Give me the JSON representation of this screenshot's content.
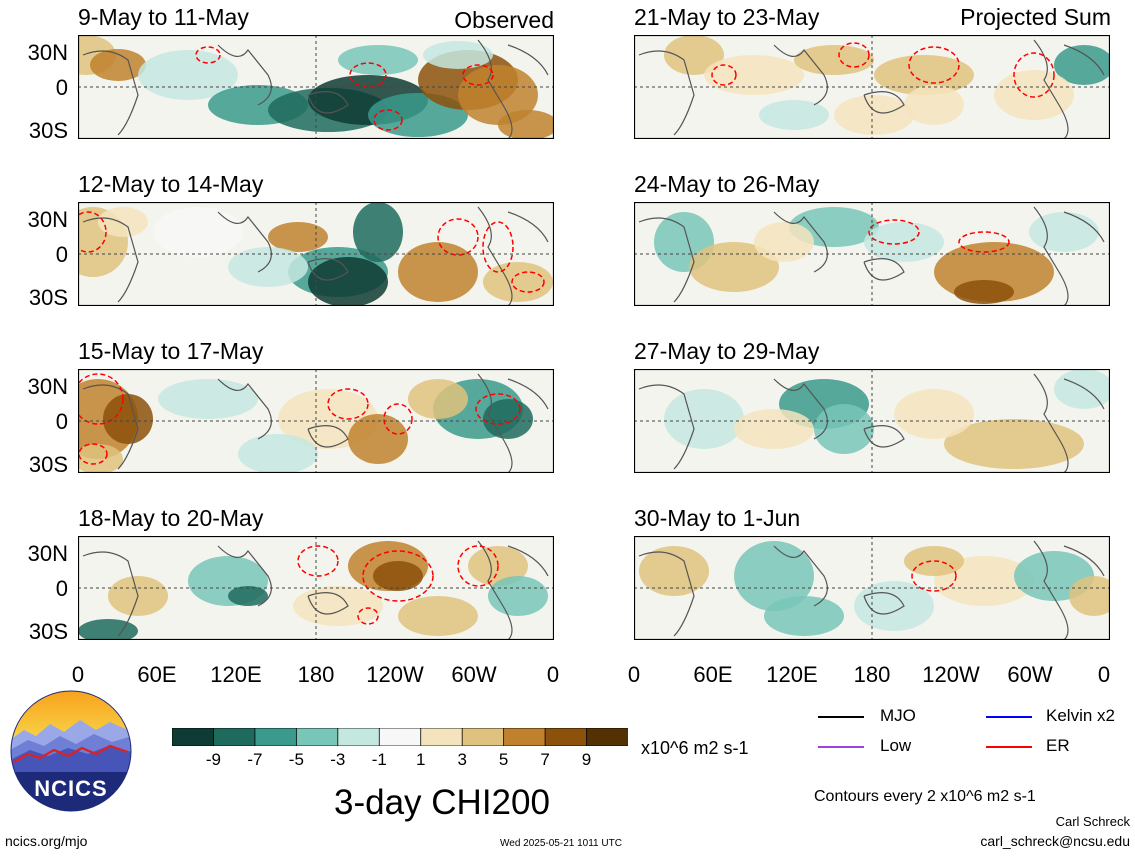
{
  "panels_left": [
    {
      "title": "9-May to 11-May",
      "corner": "Observed"
    },
    {
      "title": "12-May to 14-May",
      "corner": ""
    },
    {
      "title": "15-May to 17-May",
      "corner": ""
    },
    {
      "title": "18-May to 20-May",
      "corner": ""
    }
  ],
  "panels_right": [
    {
      "title": "21-May to 23-May",
      "corner": "Projected Sum"
    },
    {
      "title": "24-May to 26-May",
      "corner": ""
    },
    {
      "title": "27-May to 29-May",
      "corner": ""
    },
    {
      "title": "30-May to 1-Jun",
      "corner": ""
    }
  ],
  "lat_ticks": [
    "30N",
    "0",
    "30S"
  ],
  "lon_ticks": [
    "0",
    "60E",
    "120E",
    "180",
    "120W",
    "60W",
    "0"
  ],
  "colorbar": {
    "labels": [
      "-9",
      "-7",
      "-5",
      "-3",
      "-1",
      "1",
      "3",
      "5",
      "7",
      "9"
    ],
    "colors": [
      "#0e3b33",
      "#1e6b5e",
      "#3a9a8c",
      "#78c6b8",
      "#c4e8e0",
      "#f7f7f7",
      "#f4e4bd",
      "#dfc27d",
      "#bf812d",
      "#8c510a",
      "#543005"
    ],
    "units": "x10^6 m2 s-1"
  },
  "legend": {
    "items": [
      {
        "label": "MJO",
        "color": "#000000"
      },
      {
        "label": "Kelvin x2",
        "color": "#0000ff"
      },
      {
        "label": "Low",
        "color": "#a040e0"
      },
      {
        "label": "ER",
        "color": "#ff0000"
      }
    ],
    "contour_note": "Contours every 2 x10^6 m2 s-1"
  },
  "main_title": "3-day CHI200",
  "logo_text": "NCICS",
  "footer": {
    "url": "ncics.org/mjo",
    "timestamp": "Wed 2025-05-21 1011 UTC",
    "author": "Carl Schreck",
    "email": "carl_schreck@ncsu.edu"
  },
  "chart_data": [
    {
      "type": "heatmap",
      "title": "9-May to 11-May",
      "subtitle": "Observed",
      "xlabel": "",
      "ylabel": "",
      "x_ticks": [
        "0",
        "60E",
        "120E",
        "180",
        "120W",
        "60W",
        "0"
      ],
      "y_ticks": [
        "30N",
        "0",
        "30S"
      ],
      "values": "CHI200 anomaly field (x10^6 m2 s-1)"
    },
    {
      "type": "heatmap",
      "title": "12-May to 14-May"
    },
    {
      "type": "heatmap",
      "title": "15-May to 17-May"
    },
    {
      "type": "heatmap",
      "title": "18-May to 20-May"
    },
    {
      "type": "heatmap",
      "title": "21-May to 23-May",
      "subtitle": "Projected Sum"
    },
    {
      "type": "heatmap",
      "title": "24-May to 26-May"
    },
    {
      "type": "heatmap",
      "title": "27-May to 29-May"
    },
    {
      "type": "heatmap",
      "title": "30-May to 1-Jun"
    }
  ]
}
